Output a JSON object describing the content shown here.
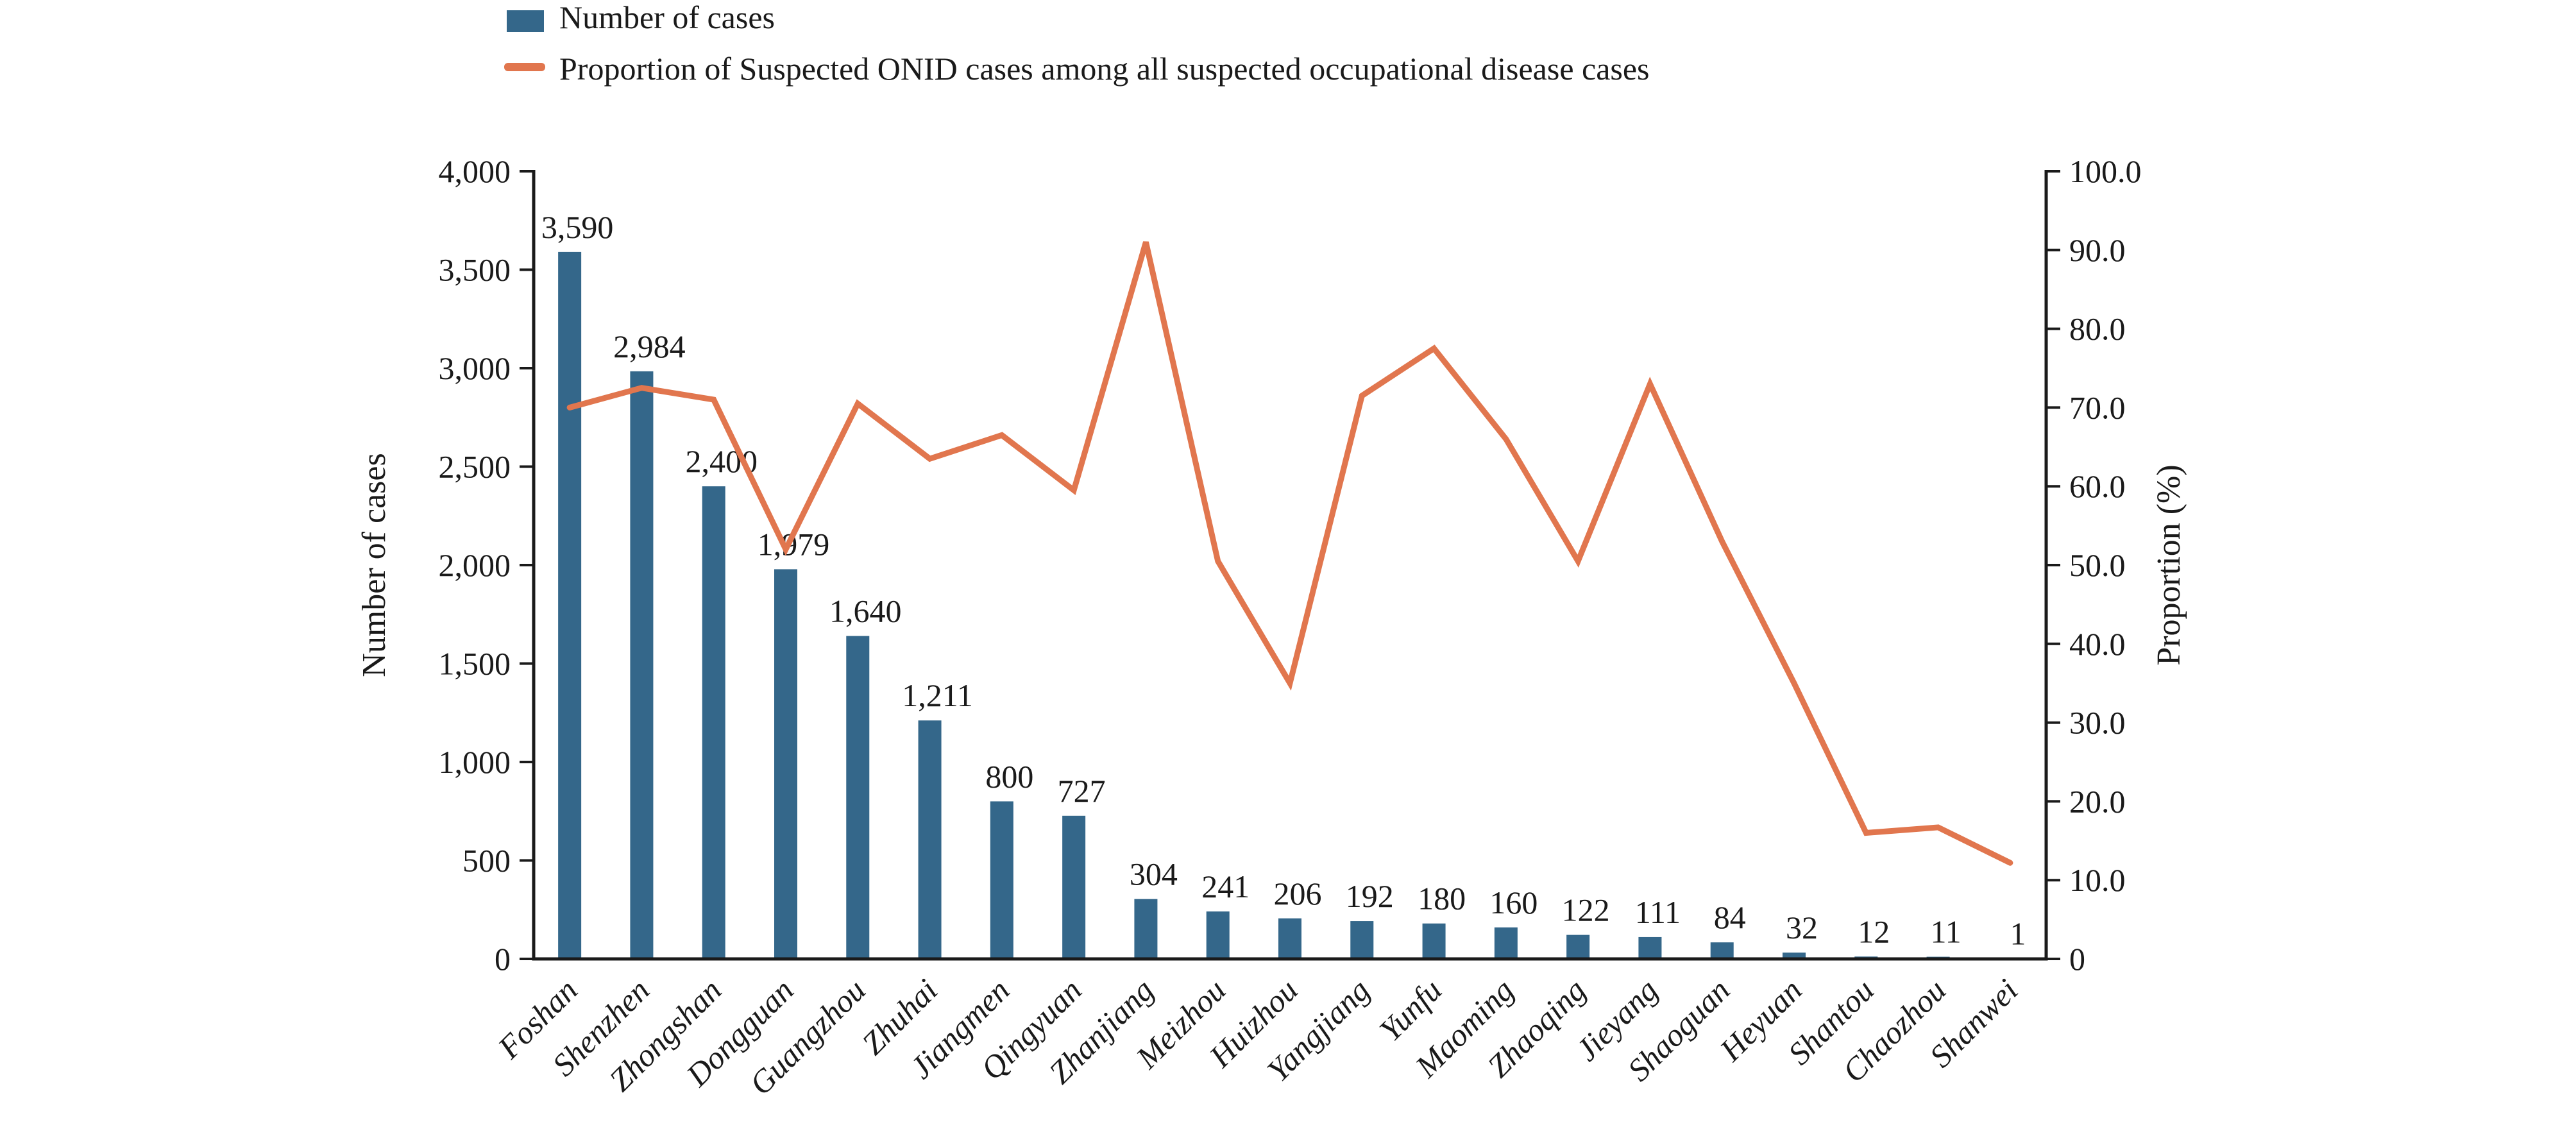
{
  "legend": {
    "bar_label": "Number of cases",
    "line_label": "Proportion of Suspected ONID cases among all suspected occupational disease cases"
  },
  "chart_data": {
    "type": "bar+line",
    "title": "",
    "categories": [
      "Foshan",
      "Shenzhen",
      "Zhongshan",
      "Dongguan",
      "Guangzhou",
      "Zhuhai",
      "Jiangmen",
      "Qingyuan",
      "Zhanjiang",
      "Meizhou",
      "Huizhou",
      "Yangjiang",
      "Yunfu",
      "Maoming",
      "Zhaoqing",
      "Jieyang",
      "Shaoguan",
      "Heyuan",
      "Shantou",
      "Chaozhou",
      "Shanwei"
    ],
    "series": [
      {
        "name": "Number of cases",
        "type": "bar",
        "axis": "left",
        "values": [
          3590,
          2984,
          2400,
          1979,
          1640,
          1211,
          800,
          727,
          304,
          241,
          206,
          192,
          180,
          160,
          122,
          111,
          84,
          32,
          12,
          11,
          1
        ],
        "labels": [
          "3,590",
          "2,984",
          "2,400",
          "1,979",
          "1,640",
          "1,211",
          "800",
          "727",
          "304",
          "241",
          "206",
          "192",
          "180",
          "160",
          "122",
          "111",
          "84",
          "32",
          "12",
          "11",
          "1"
        ]
      },
      {
        "name": "Proportion of Suspected ONID cases among all suspected occupational disease cases",
        "type": "line",
        "axis": "right",
        "values": [
          70,
          72.5,
          71,
          52,
          70.5,
          63.5,
          66.5,
          59.5,
          91,
          50.5,
          35,
          71.5,
          77.5,
          66,
          50.5,
          73,
          53,
          35,
          16,
          16.7,
          12.2
        ]
      }
    ],
    "left_axis": {
      "title": "Number of cases",
      "min": 0,
      "max": 4000,
      "tick_step": 500,
      "ticks": [
        "0",
        "500",
        "1,000",
        "1,500",
        "2,000",
        "2,500",
        "3,000",
        "3,500",
        "4,000"
      ]
    },
    "right_axis": {
      "title": "Proportion (%)",
      "min": 0,
      "max": 100,
      "tick_step": 10,
      "ticks": [
        "0",
        "10.0",
        "20.0",
        "30.0",
        "40.0",
        "50.0",
        "60.0",
        "70.0",
        "80.0",
        "90.0",
        "100.0"
      ]
    },
    "grid": false,
    "legend_position": "top-left"
  },
  "colors": {
    "bar": "#34678A",
    "line": "#E1764E",
    "axis": "#1A1A1A",
    "text": "#1A1A1A",
    "background": "#FFFFFF"
  }
}
